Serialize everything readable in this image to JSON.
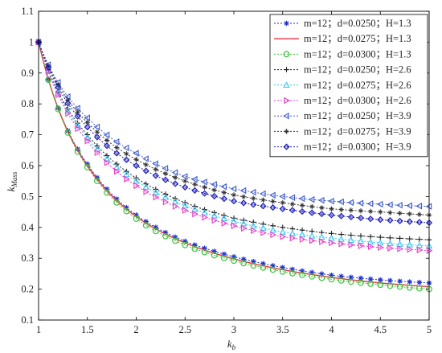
{
  "chart_data": {
    "type": "line",
    "title": "",
    "xlabel": "k",
    "xlabel_sub": "b",
    "ylabel": "k",
    "ylabel_sub": "Mass",
    "xlim": [
      1,
      5
    ],
    "ylim": [
      0.1,
      1.1
    ],
    "xticks": [
      "1",
      "1.5",
      "2",
      "2.5",
      "3",
      "3.5",
      "4",
      "4.5",
      "5"
    ],
    "yticks": [
      "0.1",
      "0.2",
      "0.3",
      "0.4",
      "0.5",
      "0.6",
      "0.7",
      "0.8",
      "0.9",
      "1",
      "1.1"
    ],
    "grid": false,
    "legend_position": "top-right",
    "x": [
      1,
      1.5,
      2,
      2.5,
      3,
      3.5,
      4,
      4.5,
      5
    ],
    "series": [
      {
        "name": "m=12；d=0.0250；H=1.3",
        "color": "#1f2fd0",
        "marker": "asterisk",
        "dash": "2,2",
        "values": [
          1.0,
          0.605,
          0.44,
          0.355,
          0.305,
          0.27,
          0.245,
          0.23,
          0.22
        ]
      },
      {
        "name": "m=12；d=0.0275；H=1.3",
        "color": "#e8323c",
        "marker": "none",
        "dash": "",
        "values": [
          1.0,
          0.6,
          0.435,
          0.35,
          0.298,
          0.263,
          0.238,
          0.22,
          0.208
        ]
      },
      {
        "name": "m=12；d=0.0300；H=1.3",
        "color": "#3cc23c",
        "marker": "circle",
        "dash": "2,2",
        "values": [
          1.0,
          0.595,
          0.428,
          0.343,
          0.292,
          0.257,
          0.232,
          0.214,
          0.2
        ]
      },
      {
        "name": "m=12；d=0.0250；H=2.6",
        "color": "#222222",
        "marker": "plus",
        "dash": "2,2",
        "values": [
          1.0,
          0.7,
          0.56,
          0.48,
          0.43,
          0.4,
          0.38,
          0.368,
          0.36
        ]
      },
      {
        "name": "m=12；d=0.0275；H=2.6",
        "color": "#39c6f0",
        "marker": "triangle-up",
        "dash": "2,2",
        "values": [
          1.0,
          0.69,
          0.55,
          0.47,
          0.42,
          0.385,
          0.365,
          0.35,
          0.34
        ]
      },
      {
        "name": "m=12；d=0.0300；H=2.6",
        "color": "#e83cc8",
        "marker": "triangle-right",
        "dash": "2,2",
        "values": [
          1.0,
          0.68,
          0.535,
          0.455,
          0.405,
          0.37,
          0.35,
          0.335,
          0.325
        ]
      },
      {
        "name": "m=12；d=0.0250；H=3.9",
        "color": "#3f5cc8",
        "marker": "triangle-left",
        "dash": "2,2",
        "values": [
          1.0,
          0.755,
          0.64,
          0.565,
          0.525,
          0.5,
          0.485,
          0.475,
          0.468
        ]
      },
      {
        "name": "m=12；d=0.0275；H=3.9",
        "color": "#333333",
        "marker": "star",
        "dash": "2,2",
        "values": [
          1.0,
          0.74,
          0.62,
          0.55,
          0.505,
          0.48,
          0.46,
          0.45,
          0.44
        ]
      },
      {
        "name": "m=12；d=0.0300；H=3.9",
        "color": "#1a1ab8",
        "marker": "diamond",
        "dash": "2,2",
        "values": [
          1.0,
          0.725,
          0.6,
          0.53,
          0.485,
          0.46,
          0.44,
          0.425,
          0.415
        ]
      }
    ]
  }
}
